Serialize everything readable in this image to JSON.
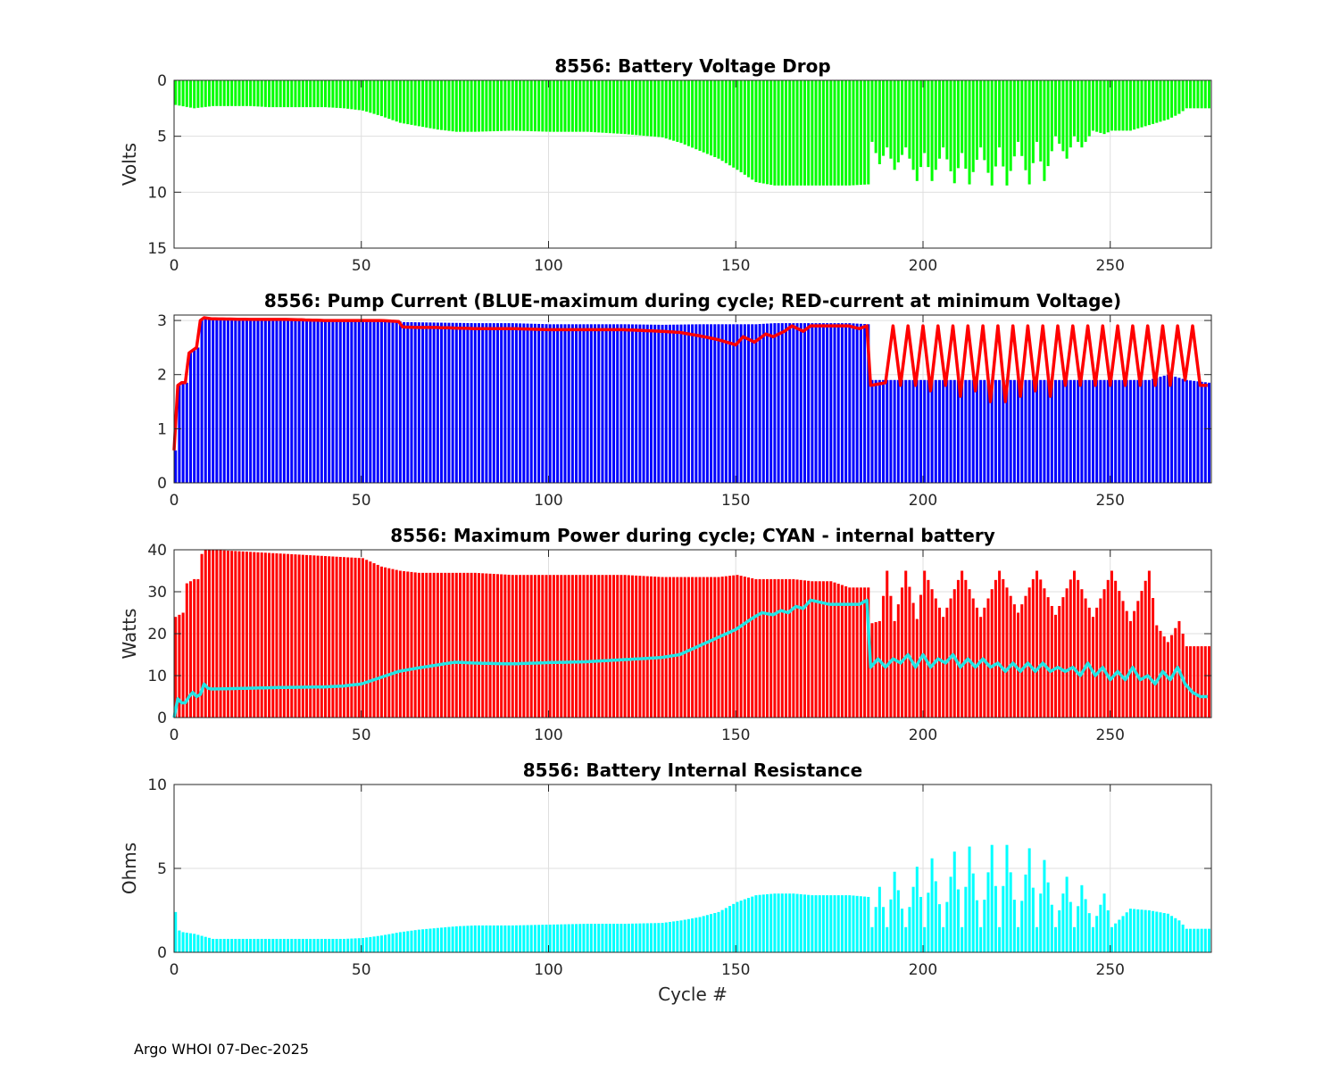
{
  "footer": "Argo WHOI 07-Dec-2025",
  "colors": {
    "green": "#00ff00",
    "blue": "#0000ff",
    "red": "#ff0000",
    "cyan": "#00ffff",
    "cyan_line": "#22e5e5",
    "grid": "#dfdfdf",
    "axis": "#262626"
  },
  "chart_data": [
    {
      "type": "bar",
      "title": "8556: Battery Voltage Drop",
      "xlabel": "",
      "ylabel": "Volts",
      "xlim": [
        0,
        277
      ],
      "ylim": [
        0,
        15
      ],
      "y_reversed": true,
      "xticks": [
        0,
        50,
        100,
        150,
        200,
        250
      ],
      "yticks": [
        0,
        5,
        10,
        15
      ],
      "grid": true,
      "series": [
        {
          "name": "voltage drop",
          "color": "green",
          "style": "bar",
          "x": [
            0,
            5,
            10,
            15,
            20,
            25,
            30,
            35,
            40,
            45,
            50,
            55,
            60,
            65,
            70,
            75,
            80,
            90,
            100,
            110,
            120,
            130,
            135,
            140,
            145,
            150,
            155,
            160,
            165,
            170,
            175,
            180,
            185,
            186,
            188,
            190,
            192,
            195,
            198,
            200,
            202,
            205,
            208,
            210,
            212,
            215,
            218,
            220,
            222,
            225,
            228,
            230,
            232,
            235,
            238,
            240,
            242,
            245,
            248,
            250,
            255,
            260,
            265,
            268,
            270,
            273,
            276
          ],
          "y": [
            2.2,
            2.5,
            2.3,
            2.3,
            2.3,
            2.4,
            2.4,
            2.4,
            2.4,
            2.5,
            2.7,
            3.2,
            3.8,
            4.1,
            4.4,
            4.6,
            4.6,
            4.5,
            4.6,
            4.6,
            4.8,
            5.1,
            5.6,
            6.3,
            7.0,
            8.0,
            9.1,
            9.4,
            9.4,
            9.4,
            9.4,
            9.4,
            9.3,
            5.5,
            7.5,
            6.0,
            8.0,
            6.0,
            9.0,
            6.5,
            9.0,
            6.0,
            9.2,
            6.5,
            9.3,
            6.0,
            9.4,
            6.0,
            9.4,
            5.5,
            9.3,
            5.5,
            9.0,
            5.0,
            7.0,
            5.0,
            6.0,
            4.5,
            4.8,
            4.5,
            4.5,
            4.0,
            3.5,
            3.0,
            2.5,
            2.5,
            2.5
          ]
        }
      ]
    },
    {
      "type": "bar",
      "title": "8556: Pump Current (BLUE-maximum during cycle; RED-current at minimum Voltage)",
      "xlabel": "",
      "ylabel": "",
      "xlim": [
        0,
        277
      ],
      "ylim": [
        0,
        3.1
      ],
      "xticks": [
        0,
        50,
        100,
        150,
        200,
        250
      ],
      "yticks": [
        0,
        1,
        2,
        3
      ],
      "grid": true,
      "series": [
        {
          "name": "maximum during cycle",
          "color": "blue",
          "style": "bar",
          "x": [
            0,
            1,
            2,
            3,
            4,
            5,
            6,
            7,
            8,
            10,
            20,
            30,
            40,
            50,
            55,
            60,
            61,
            70,
            80,
            90,
            100,
            110,
            120,
            130,
            140,
            150,
            155,
            160,
            165,
            170,
            175,
            180,
            185,
            186,
            190,
            200,
            210,
            220,
            230,
            240,
            250,
            260,
            265,
            270,
            276
          ],
          "y": [
            0.6,
            1.8,
            1.85,
            1.85,
            2.4,
            2.45,
            2.5,
            3.0,
            3.05,
            3.05,
            3.02,
            3.02,
            3.0,
            3.0,
            3.0,
            2.98,
            2.97,
            2.96,
            2.95,
            2.95,
            2.93,
            2.93,
            2.93,
            2.92,
            2.93,
            2.93,
            2.93,
            2.95,
            2.95,
            2.95,
            2.95,
            2.95,
            2.93,
            1.9,
            1.9,
            1.9,
            1.9,
            1.9,
            1.9,
            1.9,
            1.9,
            1.9,
            2.0,
            1.9,
            1.85
          ]
        },
        {
          "name": "current at minimum Voltage",
          "color": "red",
          "style": "line",
          "x": [
            0,
            1,
            2,
            3,
            4,
            5,
            6,
            7,
            8,
            10,
            20,
            30,
            40,
            50,
            55,
            60,
            61,
            65,
            70,
            80,
            90,
            100,
            110,
            120,
            130,
            135,
            140,
            145,
            150,
            152,
            155,
            158,
            160,
            163,
            165,
            168,
            170,
            175,
            180,
            183,
            185,
            186,
            190,
            192,
            194,
            196,
            198,
            200,
            202,
            204,
            206,
            208,
            210,
            212,
            214,
            216,
            218,
            220,
            222,
            224,
            226,
            228,
            230,
            232,
            234,
            236,
            238,
            240,
            242,
            244,
            246,
            248,
            250,
            252,
            254,
            256,
            258,
            260,
            262,
            264,
            266,
            268,
            270,
            272,
            274,
            276
          ],
          "y": [
            0.6,
            1.8,
            1.85,
            1.85,
            2.4,
            2.45,
            2.5,
            3.0,
            3.05,
            3.03,
            3.02,
            3.02,
            3.0,
            3.0,
            3.0,
            2.98,
            2.88,
            2.87,
            2.87,
            2.85,
            2.85,
            2.83,
            2.83,
            2.83,
            2.8,
            2.78,
            2.72,
            2.65,
            2.55,
            2.7,
            2.6,
            2.75,
            2.7,
            2.8,
            2.9,
            2.8,
            2.9,
            2.9,
            2.9,
            2.85,
            2.9,
            1.8,
            1.85,
            2.9,
            1.8,
            2.9,
            1.8,
            2.9,
            1.7,
            2.9,
            1.8,
            2.9,
            1.6,
            2.9,
            1.7,
            2.9,
            1.5,
            2.9,
            1.5,
            2.9,
            1.6,
            2.9,
            1.7,
            2.9,
            1.6,
            2.9,
            1.8,
            2.9,
            1.8,
            2.9,
            1.8,
            2.9,
            1.8,
            2.9,
            1.8,
            2.9,
            1.8,
            2.9,
            1.8,
            2.9,
            1.8,
            2.9,
            1.9,
            2.9,
            1.8,
            1.8
          ]
        }
      ]
    },
    {
      "type": "bar",
      "title": "8556: Maximum Power during cycle; CYAN - internal battery",
      "xlabel": "",
      "ylabel": "Watts",
      "xlim": [
        0,
        277
      ],
      "ylim": [
        0,
        40
      ],
      "xticks": [
        0,
        50,
        100,
        150,
        200,
        250
      ],
      "yticks": [
        0,
        10,
        20,
        30,
        40
      ],
      "grid": true,
      "series": [
        {
          "name": "maximum power",
          "color": "red",
          "style": "bar",
          "x": [
            0,
            1,
            2,
            3,
            4,
            5,
            6,
            7,
            8,
            10,
            20,
            30,
            40,
            50,
            55,
            60,
            65,
            70,
            80,
            90,
            100,
            110,
            120,
            130,
            140,
            145,
            150,
            155,
            160,
            165,
            170,
            175,
            180,
            184,
            185,
            186,
            188,
            190,
            192,
            195,
            198,
            200,
            205,
            210,
            215,
            220,
            225,
            230,
            235,
            240,
            245,
            250,
            255,
            260,
            262,
            265,
            268,
            270,
            273,
            276
          ],
          "y": [
            24,
            24.5,
            25,
            32,
            32.5,
            33,
            33,
            39,
            40,
            40,
            39.5,
            39,
            38.5,
            38,
            36,
            35,
            34.5,
            34.5,
            34.5,
            34,
            34,
            34,
            34,
            33.5,
            33.5,
            33.5,
            34,
            33,
            33,
            33,
            32.5,
            32.5,
            31,
            31,
            31,
            22.5,
            23,
            35,
            23,
            35,
            23.5,
            35,
            24,
            35,
            24,
            35,
            25,
            35,
            24.5,
            35,
            24,
            35,
            23,
            35,
            22,
            18,
            23,
            17,
            17,
            17
          ]
        },
        {
          "name": "internal battery",
          "color": "cyan_line",
          "style": "line",
          "x": [
            0,
            1,
            2,
            3,
            4,
            5,
            6,
            7,
            8,
            9,
            10,
            20,
            30,
            40,
            45,
            50,
            55,
            60,
            65,
            70,
            75,
            80,
            90,
            100,
            110,
            120,
            130,
            135,
            140,
            145,
            150,
            155,
            157,
            160,
            162,
            164,
            166,
            168,
            170,
            175,
            180,
            183,
            185,
            186,
            188,
            190,
            192,
            194,
            196,
            198,
            200,
            202,
            204,
            206,
            208,
            210,
            212,
            214,
            216,
            218,
            220,
            222,
            224,
            226,
            228,
            230,
            232,
            234,
            236,
            238,
            240,
            242,
            244,
            246,
            248,
            250,
            252,
            254,
            256,
            258,
            260,
            262,
            264,
            266,
            268,
            270,
            272,
            274,
            276
          ],
          "y": [
            0,
            4.5,
            3.5,
            3.5,
            5,
            6,
            5,
            5.5,
            8,
            7,
            6.8,
            7,
            7.2,
            7.3,
            7.5,
            8,
            9.5,
            11,
            11.8,
            12.5,
            13.2,
            13,
            12.8,
            13.1,
            13.3,
            13.8,
            14.3,
            15,
            17,
            19,
            21,
            24,
            25,
            24.5,
            25.5,
            25,
            26.5,
            26,
            28,
            27,
            27,
            27,
            28,
            12,
            14,
            12,
            14,
            13,
            15,
            12,
            15,
            12,
            14,
            13,
            15,
            12,
            14,
            12,
            14,
            12,
            13,
            11,
            13,
            11,
            13,
            11,
            13,
            11,
            12,
            11,
            12,
            10,
            13,
            10,
            12,
            9,
            11,
            9,
            12,
            9,
            10,
            8,
            11,
            9,
            12,
            8,
            6,
            5,
            5
          ]
        }
      ]
    },
    {
      "type": "bar",
      "title": "8556: Battery Internal Resistance",
      "xlabel": "Cycle #",
      "ylabel": "Ohms",
      "xlim": [
        0,
        277
      ],
      "ylim": [
        0,
        10
      ],
      "xticks": [
        0,
        50,
        100,
        150,
        200,
        250
      ],
      "yticks": [
        0,
        5,
        10
      ],
      "grid": true,
      "series": [
        {
          "name": "internal resistance",
          "color": "cyan",
          "style": "bar",
          "x": [
            0,
            1,
            2,
            5,
            10,
            20,
            30,
            40,
            45,
            50,
            55,
            60,
            65,
            70,
            75,
            80,
            90,
            100,
            110,
            120,
            130,
            135,
            140,
            145,
            150,
            155,
            160,
            165,
            170,
            175,
            180,
            185,
            186,
            188,
            190,
            192,
            195,
            198,
            200,
            202,
            205,
            208,
            210,
            212,
            215,
            218,
            220,
            222,
            225,
            228,
            230,
            232,
            235,
            238,
            240,
            242,
            245,
            248,
            250,
            255,
            260,
            265,
            268,
            270,
            273,
            276
          ],
          "y": [
            2.4,
            1.3,
            1.2,
            1.1,
            0.8,
            0.8,
            0.8,
            0.8,
            0.8,
            0.85,
            1.0,
            1.2,
            1.35,
            1.45,
            1.55,
            1.6,
            1.6,
            1.65,
            1.7,
            1.7,
            1.75,
            1.9,
            2.1,
            2.4,
            3.0,
            3.4,
            3.5,
            3.5,
            3.4,
            3.4,
            3.4,
            3.3,
            1.5,
            3.9,
            1.5,
            4.8,
            1.5,
            5.1,
            1.5,
            5.6,
            1.5,
            6.0,
            1.5,
            6.3,
            1.5,
            6.4,
            1.5,
            6.4,
            1.5,
            6.2,
            1.5,
            5.5,
            1.5,
            4.5,
            1.5,
            4.0,
            1.5,
            3.5,
            1.5,
            2.6,
            2.5,
            2.3,
            1.9,
            1.4,
            1.4,
            1.4
          ]
        }
      ]
    }
  ]
}
